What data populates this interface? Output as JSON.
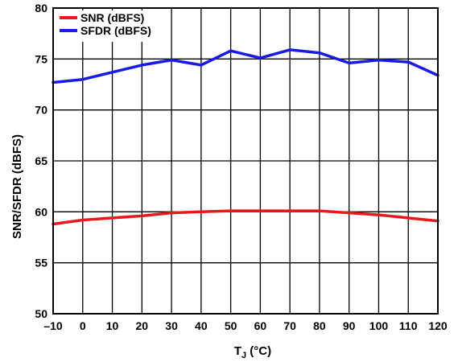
{
  "chart_data": {
    "type": "line",
    "xlabel": {
      "main": "T",
      "sub": "J",
      "unit": " (°C)"
    },
    "ylabel": "SNR/SFDR (dBFS)",
    "xlim": [
      -10,
      120
    ],
    "ylim": [
      50,
      80
    ],
    "x_ticks": [
      "–10",
      "0",
      "10",
      "20",
      "30",
      "40",
      "50",
      "60",
      "70",
      "80",
      "90",
      "100",
      "110",
      "120"
    ],
    "y_ticks": [
      "50",
      "55",
      "60",
      "65",
      "70",
      "75",
      "80"
    ],
    "grid": true,
    "legend_position": "top-left",
    "x": [
      -10,
      0,
      10,
      20,
      30,
      40,
      50,
      60,
      70,
      80,
      90,
      100,
      110,
      120
    ],
    "series": [
      {
        "name": "SNR (dBFS)",
        "color": "#e8191c",
        "values": [
          58.8,
          59.2,
          59.4,
          59.6,
          59.9,
          60.0,
          60.1,
          60.1,
          60.1,
          60.1,
          59.9,
          59.7,
          59.4,
          59.1
        ]
      },
      {
        "name": "SFDR (dBFS)",
        "color": "#1a1ae6",
        "values": [
          72.7,
          73.0,
          73.7,
          74.4,
          74.9,
          74.4,
          75.8,
          75.1,
          75.9,
          75.6,
          74.6,
          74.9,
          74.7,
          73.4
        ]
      }
    ]
  }
}
